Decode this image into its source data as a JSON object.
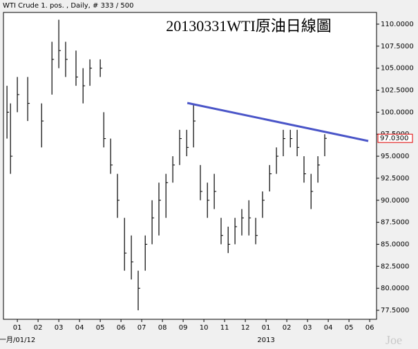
{
  "chart_data": {
    "type": "ohlc",
    "header": "WTI Crude 1. pos. , Daily, # 333 / 500",
    "title": "20130331WTI原油日線圖",
    "watermark": "Joe",
    "color": "#000000",
    "x": [
      0.5,
      0.67,
      1,
      1.5,
      2.17,
      2.67,
      3,
      3.33,
      3.83,
      4.17,
      4.5,
      5,
      5.17,
      5.5,
      5.83,
      6.17,
      6.5,
      6.83,
      7.17,
      7.5,
      7.83,
      8.17,
      8.5,
      8.83,
      9.17,
      9.5,
      9.83,
      10.17,
      10.5,
      10.83,
      11.17,
      11.5,
      11.83,
      12.17,
      12.5,
      12.83,
      13.17,
      13.5,
      13.83,
      14.17,
      14.5,
      14.83,
      15.17,
      15.5,
      15.83
    ],
    "high": [
      103,
      101,
      104,
      104,
      101,
      108,
      110.5,
      108,
      107,
      105,
      106,
      106,
      100,
      97,
      93,
      88,
      86,
      82,
      86,
      90,
      92,
      93,
      95,
      98,
      98,
      101,
      94,
      92,
      93,
      88,
      87,
      88,
      89,
      90,
      88,
      91,
      94,
      96,
      98,
      98,
      98,
      95,
      93,
      95,
      97.5
    ],
    "low": [
      97,
      93,
      100,
      99,
      96,
      102,
      105,
      104,
      103,
      101,
      103,
      104,
      96,
      93,
      88,
      82,
      81,
      77.5,
      82,
      85,
      86,
      88,
      92,
      94,
      95,
      96,
      90,
      88,
      89,
      85,
      84,
      85,
      86,
      86,
      85,
      88,
      91,
      93,
      95,
      96,
      95,
      92,
      89,
      92,
      95
    ],
    "close": [
      100,
      95,
      102,
      101,
      99,
      106,
      107,
      106,
      104,
      103,
      105,
      105,
      97,
      94,
      90,
      84,
      83,
      80,
      85,
      88,
      90,
      92,
      94,
      97,
      96,
      99,
      91,
      90,
      91,
      86,
      85,
      87,
      88,
      88,
      86,
      90,
      93,
      95,
      97,
      97,
      96,
      93,
      91,
      94,
      97.03
    ],
    "xlim": [
      0.33,
      18.33
    ],
    "xticks": [
      {
        "value": 1,
        "label": "01"
      },
      {
        "value": 2,
        "label": "02"
      },
      {
        "value": 3,
        "label": "03"
      },
      {
        "value": 4,
        "label": "04"
      },
      {
        "value": 5,
        "label": "05"
      },
      {
        "value": 6,
        "label": "06"
      },
      {
        "value": 7,
        "label": "07"
      },
      {
        "value": 8,
        "label": "08"
      },
      {
        "value": 9,
        "label": "09"
      },
      {
        "value": 10,
        "label": "10"
      },
      {
        "value": 11,
        "label": "11"
      },
      {
        "value": 12,
        "label": "12"
      },
      {
        "value": 13,
        "label": "01"
      },
      {
        "value": 14,
        "label": "02"
      },
      {
        "value": 15,
        "label": "03"
      },
      {
        "value": 16,
        "label": "04"
      },
      {
        "value": 17,
        "label": "05"
      },
      {
        "value": 18,
        "label": "06"
      }
    ],
    "year_labels": [
      {
        "value": 1,
        "label": "一月/01/12"
      },
      {
        "value": 13,
        "label": "2013"
      }
    ],
    "ylim": [
      76.48,
      111.33
    ],
    "yticks": [
      {
        "value": 77.5,
        "label": "77.5000"
      },
      {
        "value": 80,
        "label": "80.0000"
      },
      {
        "value": 82.5,
        "label": "82.5000"
      },
      {
        "value": 85,
        "label": "85.0000"
      },
      {
        "value": 87.5,
        "label": "87.5000"
      },
      {
        "value": 90,
        "label": "90.0000"
      },
      {
        "value": 92.5,
        "label": "92.5000"
      },
      {
        "value": 95,
        "label": "95.0000"
      },
      {
        "value": 97.5,
        "label": "97.5000"
      },
      {
        "value": 100,
        "label": "100.0000"
      },
      {
        "value": 102.5,
        "label": "102.5000"
      },
      {
        "value": 105,
        "label": "105.0000"
      },
      {
        "value": 107.5,
        "label": "107.5000"
      },
      {
        "value": 110,
        "label": "110.0000"
      }
    ],
    "trendline": {
      "x": [
        9.2,
        17.93
      ],
      "y": [
        101.05,
        96.73
      ],
      "color": "#4a55c8"
    },
    "last_price": {
      "value": 97.03,
      "label": "97.0300",
      "color": "#e00000"
    }
  }
}
